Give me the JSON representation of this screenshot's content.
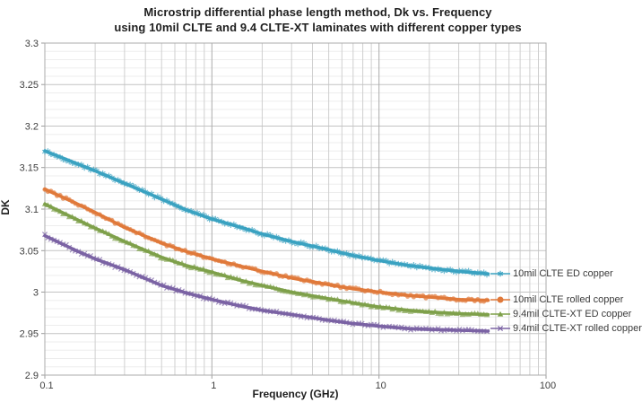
{
  "chart_data": {
    "type": "line",
    "title_line1": "Microstrip differential phase length method, Dk vs. Frequency",
    "title_line2": "using 10mil CLTE and 9.4 CLTE-XT laminates with different copper types",
    "xlabel": "Frequency (GHz)",
    "ylabel": "DK",
    "x_scale": "log",
    "grid": true,
    "legend_position": "right-inside",
    "xlim": [
      0.1,
      100
    ],
    "ylim": [
      2.9,
      3.3
    ],
    "x_ticks": [
      0.1,
      1,
      10,
      100
    ],
    "x_tick_labels": [
      "0.1",
      "1",
      "10",
      "100"
    ],
    "y_ticks": [
      3.3,
      3.25,
      3.2,
      3.15,
      3.1,
      3.05,
      3.0,
      2.95,
      2.9
    ],
    "y_tick_labels": [
      "3.3",
      "3.25",
      "3.2",
      "3.15",
      "3.1",
      "3.05",
      "3",
      "2.95",
      "2.9"
    ],
    "y_minor_step": 0.01,
    "x": [
      0.1,
      0.15,
      0.2,
      0.3,
      0.5,
      0.7,
      1,
      1.5,
      2,
      3,
      5,
      7,
      10,
      15,
      20,
      30,
      45
    ],
    "series": [
      {
        "name": "10mil CLTE ED copper",
        "color": "#3aa2c1",
        "marker": "asterisk",
        "values": [
          3.17,
          3.156,
          3.146,
          3.131,
          3.112,
          3.099,
          3.088,
          3.078,
          3.07,
          3.061,
          3.051,
          3.044,
          3.038,
          3.032,
          3.029,
          3.025,
          3.022
        ]
      },
      {
        "name": "10mil CLTE rolled copper",
        "color": "#e0793a",
        "marker": "circle",
        "values": [
          3.124,
          3.108,
          3.096,
          3.078,
          3.059,
          3.049,
          3.04,
          3.031,
          3.025,
          3.017,
          3.009,
          3.004,
          3.0,
          2.996,
          2.994,
          2.991,
          2.99
        ]
      },
      {
        "name": "9.4mil CLTE-XT ED copper",
        "color": "#7ea04a",
        "marker": "triangle",
        "values": [
          3.106,
          3.089,
          3.077,
          3.061,
          3.042,
          3.032,
          3.024,
          3.014,
          3.008,
          3.0,
          2.992,
          2.987,
          2.982,
          2.978,
          2.976,
          2.974,
          2.973
        ]
      },
      {
        "name": "9.4mil CLTE-XT rolled copper",
        "color": "#7b63a4",
        "marker": "x",
        "values": [
          3.068,
          3.051,
          3.04,
          3.027,
          3.008,
          2.999,
          2.991,
          2.983,
          2.978,
          2.973,
          2.966,
          2.962,
          2.959,
          2.956,
          2.955,
          2.954,
          2.953
        ]
      }
    ],
    "colors": {
      "grid_minor_h": "#ededed",
      "grid_minor_v": "#cfcfcf",
      "grid_major_h": "#c3c3c3",
      "grid_major_v": "#ababab",
      "axis": "#9b9b9b",
      "tick_text": "#3f3f3f"
    }
  }
}
